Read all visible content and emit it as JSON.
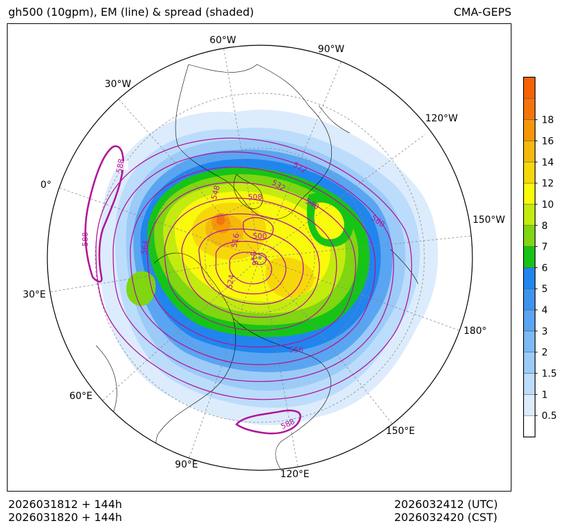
{
  "header": {
    "title": "gh500 (10gpm), EM (line) & spread (shaded)",
    "model": "CMA-GEPS"
  },
  "footer": {
    "init_utc": "2026031812 + 144h",
    "init_cst": "2026031820 + 144h",
    "valid_utc": "2026032412 (UTC)",
    "valid_cst": "2026032420 (CST)"
  },
  "map": {
    "projection": "north polar stereographic",
    "longitude_labels": [
      "0°",
      "30°W",
      "60°W",
      "90°W",
      "120°W",
      "150°W",
      "180°",
      "150°E",
      "120°E",
      "90°E",
      "60°E",
      "30°E"
    ],
    "contour_labels": [
      "588",
      "588",
      "564",
      "548",
      "508",
      "532",
      "572",
      "540",
      "580",
      "500",
      "516",
      "516",
      "524",
      "556",
      "588"
    ],
    "colors": {
      "contour": "#b0179a",
      "frame": "#000000"
    }
  },
  "colorbar": {
    "ticks": [
      "0.5",
      "1",
      "1.5",
      "2",
      "3",
      "4",
      "5",
      "6",
      "7",
      "8",
      "10",
      "12",
      "14",
      "16",
      "18"
    ],
    "colors": [
      "#ffffff",
      "#dcecfc",
      "#bcdcfb",
      "#9ccbf8",
      "#7cb9f5",
      "#5aa5f2",
      "#3e93ef",
      "#2185ee",
      "#16c417",
      "#7fd611",
      "#c3eb0f",
      "#f9f90b",
      "#f6d80a",
      "#f5b80a",
      "#f59707",
      "#f5740a",
      "#f76103"
    ]
  }
}
